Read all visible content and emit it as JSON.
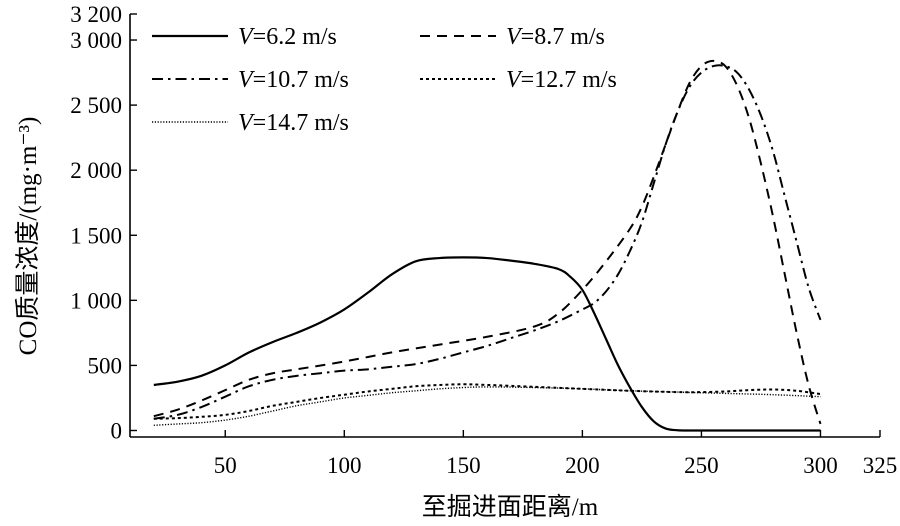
{
  "chart_data": {
    "type": "line",
    "xlabel": "至掘进面距离/m",
    "ylabel": "CO质量浓度/(mg·m⁻³)",
    "xlim": [
      10,
      325
    ],
    "ylim": [
      -50,
      3200
    ],
    "x_ticks": [
      50,
      100,
      150,
      200,
      250,
      300,
      325
    ],
    "x_tick_labels": [
      "50",
      "100",
      "150",
      "200",
      "250",
      "300",
      "325"
    ],
    "y_ticks": [
      0,
      500,
      1000,
      1500,
      2000,
      2500,
      3000,
      3200
    ],
    "y_tick_labels": [
      "0",
      "500",
      "1 000",
      "1 500",
      "2 000",
      "2 500",
      "3 000",
      "3 200"
    ],
    "legend_position": "top",
    "series": [
      {
        "name": "V=6.2 m/s",
        "legend_var": "V",
        "legend_rest": "=6.2 m/s",
        "style": "solid",
        "x": [
          20,
          30,
          40,
          50,
          60,
          70,
          80,
          90,
          100,
          110,
          120,
          130,
          140,
          150,
          160,
          170,
          180,
          190,
          195,
          200,
          205,
          210,
          215,
          220,
          225,
          230,
          235,
          240,
          245,
          250,
          260,
          280,
          300
        ],
        "y": [
          350,
          375,
          420,
          500,
          600,
          680,
          750,
          830,
          930,
          1060,
          1200,
          1300,
          1325,
          1330,
          1325,
          1305,
          1280,
          1240,
          1180,
          1080,
          900,
          700,
          500,
          330,
          180,
          70,
          15,
          2,
          0,
          0,
          0,
          0,
          0
        ]
      },
      {
        "name": "V=8.7 m/s",
        "legend_var": "V",
        "legend_rest": "=8.7 m/s",
        "style": "dashed",
        "x": [
          20,
          30,
          40,
          50,
          60,
          70,
          80,
          100,
          120,
          140,
          160,
          180,
          190,
          200,
          210,
          220,
          225,
          230,
          235,
          240,
          245,
          250,
          255,
          260,
          265,
          270,
          275,
          280,
          285,
          290,
          295,
          300
        ],
        "y": [
          110,
          160,
          230,
          310,
          390,
          440,
          470,
          530,
          600,
          660,
          720,
          800,
          900,
          1080,
          1300,
          1550,
          1720,
          1950,
          2200,
          2450,
          2670,
          2800,
          2840,
          2800,
          2650,
          2400,
          2050,
          1650,
          1200,
          750,
          350,
          50
        ]
      },
      {
        "name": "V=10.7 m/s",
        "legend_var": "V",
        "legend_rest": "=10.7 m/s",
        "style": "dashdot",
        "x": [
          20,
          30,
          40,
          50,
          60,
          70,
          80,
          90,
          100,
          110,
          120,
          130,
          140,
          150,
          160,
          170,
          180,
          190,
          200,
          205,
          210,
          215,
          220,
          225,
          230,
          235,
          240,
          245,
          250,
          255,
          260,
          265,
          270,
          275,
          280,
          285,
          290,
          295,
          300
        ],
        "y": [
          90,
          120,
          180,
          260,
          340,
          390,
          420,
          440,
          460,
          470,
          490,
          510,
          550,
          600,
          650,
          710,
          770,
          840,
          930,
          980,
          1070,
          1200,
          1380,
          1600,
          1900,
          2200,
          2450,
          2640,
          2750,
          2800,
          2800,
          2750,
          2620,
          2420,
          2150,
          1800,
          1450,
          1100,
          850
        ]
      },
      {
        "name": "V=12.7 m/s",
        "legend_var": "V",
        "legend_rest": "=12.7 m/s",
        "style": "dotted",
        "x": [
          20,
          30,
          40,
          50,
          60,
          70,
          80,
          90,
          100,
          110,
          120,
          130,
          140,
          150,
          160,
          180,
          200,
          220,
          240,
          250,
          260,
          270,
          280,
          290,
          300
        ],
        "y": [
          90,
          95,
          105,
          120,
          150,
          190,
          220,
          250,
          275,
          300,
          320,
          340,
          350,
          355,
          350,
          335,
          320,
          305,
          295,
          295,
          300,
          310,
          315,
          305,
          280
        ]
      },
      {
        "name": "V=14.7 m/s",
        "legend_var": "V",
        "legend_rest": "=14.7 m/s",
        "style": "fine-dotted",
        "x": [
          20,
          30,
          40,
          50,
          60,
          70,
          80,
          90,
          100,
          110,
          120,
          130,
          140,
          150,
          160,
          180,
          200,
          220,
          240,
          260,
          280,
          300
        ],
        "y": [
          40,
          50,
          60,
          80,
          110,
          150,
          190,
          220,
          250,
          270,
          290,
          305,
          320,
          330,
          335,
          330,
          320,
          305,
          295,
          285,
          275,
          260
        ]
      }
    ]
  }
}
